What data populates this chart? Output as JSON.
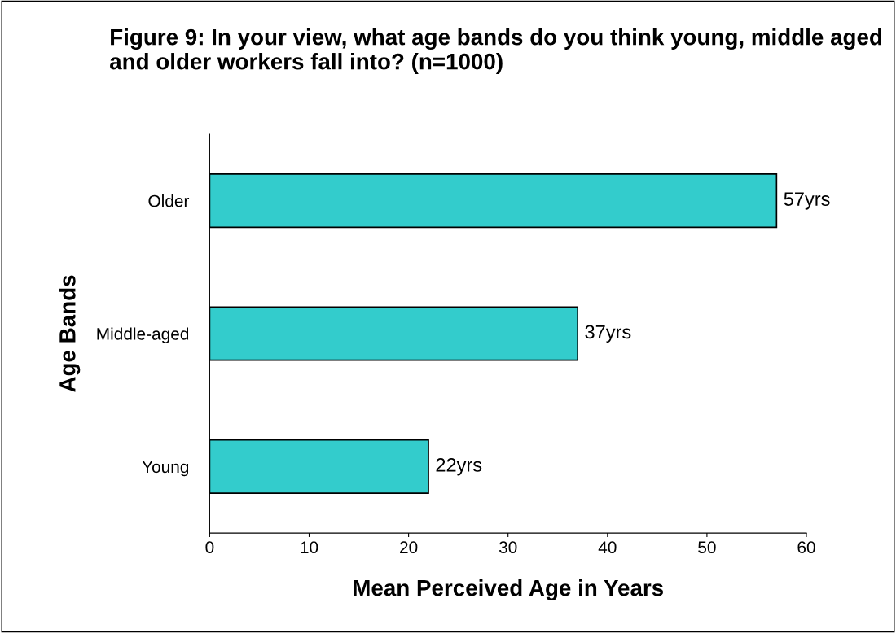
{
  "chart_data": {
    "type": "bar",
    "orientation": "horizontal",
    "title": "Figure 9: In your view, what age bands do you think young, middle aged and older workers fall into? (n=1000)",
    "xlabel": "Mean Perceived Age in Years",
    "ylabel": "Age Bands",
    "categories": [
      "Older",
      "Middle-aged",
      "Young"
    ],
    "values": [
      57,
      37,
      22
    ],
    "value_labels": [
      "57yrs",
      "37yrs",
      "22yrs"
    ],
    "color": "#33cccc",
    "xlim": [
      0,
      60
    ],
    "xticks": [
      0,
      10,
      20,
      30,
      40,
      50,
      60
    ],
    "grid": false,
    "legend": false
  }
}
